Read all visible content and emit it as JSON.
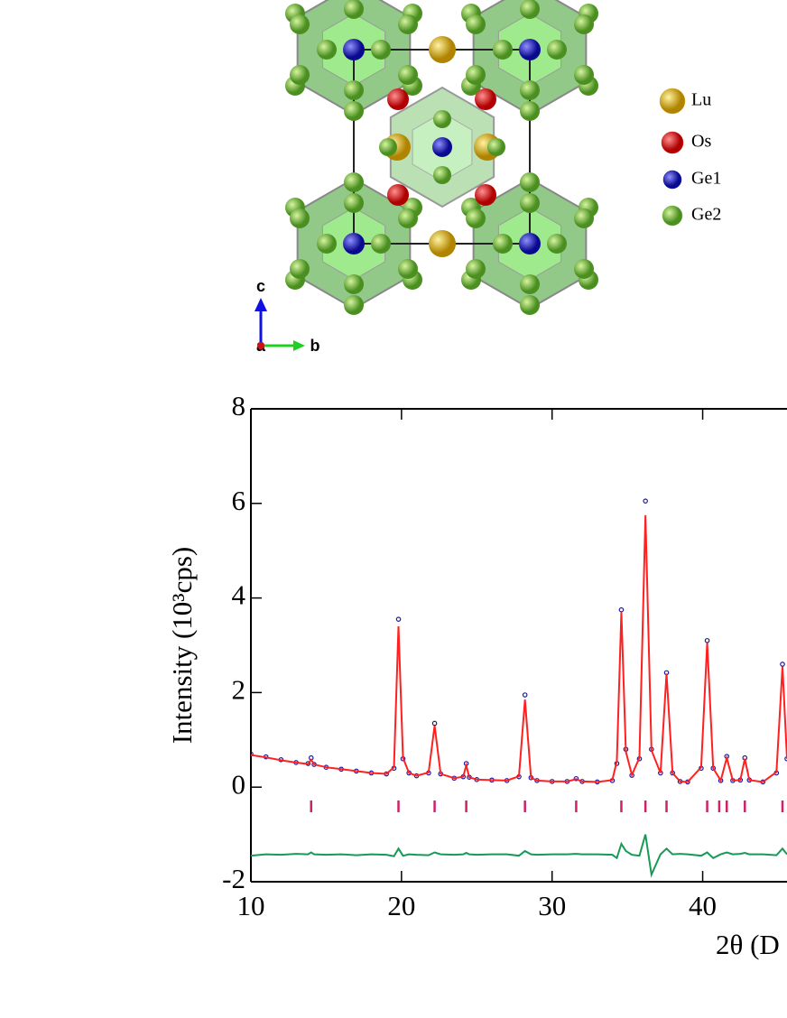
{
  "structure": {
    "legend": [
      "Lu",
      "Os",
      "Ge1",
      "Ge2"
    ],
    "legend_colors": [
      "#d9a90f",
      "#e01010",
      "#1818b8",
      "#6fbf3a"
    ],
    "axes": [
      "c",
      "a",
      "b"
    ]
  },
  "chart_data": {
    "type": "line",
    "ylabel": "Intensity (10³cps)",
    "xlabel": "2θ (D",
    "xlim": [
      10,
      45.6
    ],
    "xticks": [
      10,
      20,
      30,
      40
    ],
    "ylim": [
      -2,
      8
    ],
    "yticks": [
      -2,
      0,
      2,
      4,
      6,
      8
    ],
    "x": [
      10,
      11,
      12,
      13,
      13.8,
      14.0,
      14.2,
      15,
      16,
      17,
      18,
      19,
      19.5,
      19.8,
      20.1,
      20.5,
      21,
      21.8,
      22.2,
      22.6,
      23.5,
      24.1,
      24.3,
      24.5,
      25,
      26,
      27,
      27.8,
      28.2,
      28.6,
      29,
      30,
      31,
      31.6,
      32,
      33,
      34,
      34.3,
      34.6,
      34.9,
      35.3,
      35.8,
      36.2,
      36.6,
      37.2,
      37.6,
      38.0,
      38.5,
      39,
      39.9,
      40.3,
      40.7,
      41.2,
      41.6,
      42.0,
      42.5,
      42.8,
      43.1,
      44,
      44.9,
      45.3,
      45.6
    ],
    "series": [
      {
        "style": "points",
        "color": "#1a1aa0",
        "values": [
          0.7,
          0.64,
          0.58,
          0.52,
          0.5,
          0.62,
          0.48,
          0.42,
          0.38,
          0.34,
          0.3,
          0.28,
          0.4,
          3.55,
          0.6,
          0.3,
          0.24,
          0.3,
          1.35,
          0.28,
          0.19,
          0.22,
          0.5,
          0.21,
          0.16,
          0.15,
          0.14,
          0.22,
          1.95,
          0.2,
          0.14,
          0.12,
          0.12,
          0.18,
          0.12,
          0.11,
          0.14,
          0.5,
          3.75,
          0.8,
          0.25,
          0.6,
          6.05,
          0.8,
          0.3,
          2.42,
          0.3,
          0.12,
          0.11,
          0.4,
          3.1,
          0.4,
          0.14,
          0.65,
          0.14,
          0.15,
          0.62,
          0.15,
          0.11,
          0.3,
          2.6,
          0.6
        ]
      },
      {
        "style": "line",
        "color": "#ff2020",
        "values": [
          0.68,
          0.63,
          0.57,
          0.52,
          0.49,
          0.58,
          0.48,
          0.42,
          0.38,
          0.34,
          0.3,
          0.28,
          0.42,
          3.4,
          0.62,
          0.3,
          0.24,
          0.31,
          1.3,
          0.28,
          0.19,
          0.22,
          0.46,
          0.21,
          0.16,
          0.15,
          0.14,
          0.23,
          1.85,
          0.2,
          0.14,
          0.12,
          0.12,
          0.17,
          0.12,
          0.11,
          0.15,
          0.55,
          3.7,
          0.75,
          0.26,
          0.62,
          5.75,
          0.78,
          0.3,
          2.4,
          0.3,
          0.12,
          0.11,
          0.42,
          3.05,
          0.4,
          0.14,
          0.62,
          0.14,
          0.15,
          0.6,
          0.15,
          0.11,
          0.32,
          2.55,
          0.6
        ]
      },
      {
        "style": "line",
        "color": "#179a55",
        "values": [
          -1.45,
          -1.42,
          -1.43,
          -1.41,
          -1.42,
          -1.38,
          -1.42,
          -1.43,
          -1.42,
          -1.44,
          -1.42,
          -1.43,
          -1.46,
          -1.3,
          -1.45,
          -1.42,
          -1.43,
          -1.44,
          -1.38,
          -1.42,
          -1.43,
          -1.42,
          -1.39,
          -1.42,
          -1.43,
          -1.42,
          -1.42,
          -1.45,
          -1.35,
          -1.42,
          -1.43,
          -1.42,
          -1.42,
          -1.41,
          -1.42,
          -1.42,
          -1.43,
          -1.5,
          -1.2,
          -1.35,
          -1.43,
          -1.45,
          -1.0,
          -1.85,
          -1.42,
          -1.3,
          -1.42,
          -1.41,
          -1.42,
          -1.45,
          -1.38,
          -1.5,
          -1.42,
          -1.38,
          -1.42,
          -1.41,
          -1.39,
          -1.42,
          -1.42,
          -1.44,
          -1.3,
          -1.42
        ]
      }
    ],
    "bragg": {
      "color": "#d0206a",
      "x": [
        14.0,
        19.8,
        22.2,
        24.3,
        28.2,
        31.6,
        34.6,
        36.2,
        37.6,
        40.3,
        41.1,
        41.6,
        42.8,
        45.3
      ]
    }
  }
}
